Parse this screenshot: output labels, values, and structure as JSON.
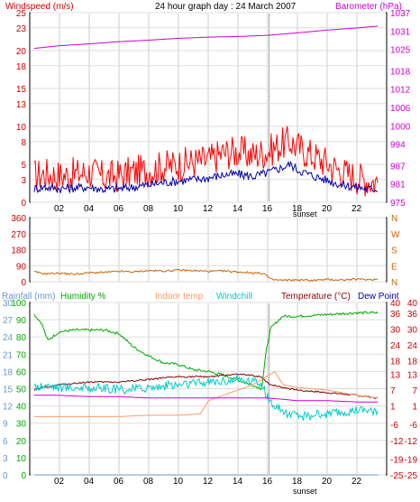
{
  "chart_data": {
    "title": "24 hour graph day : 24 March 2007",
    "x_ticks": [
      "02",
      "04",
      "06",
      "08",
      "10",
      "12",
      "14",
      "16",
      "18",
      "20",
      "22"
    ],
    "sunset_label": "sunset",
    "sunset_hour": 16.1,
    "panels": [
      {
        "id": "wind",
        "type": "line",
        "left_axis": {
          "label": "Windspeed (m/s)",
          "color": "#cc0000",
          "ticks": [
            0,
            3,
            5,
            8,
            10,
            13,
            15,
            18,
            20,
            23,
            25
          ],
          "range": [
            0,
            25
          ]
        },
        "right_axis": {
          "label": "Barometer (hPa)",
          "color": "#cc00cc",
          "ticks": [
            975,
            981,
            987,
            994,
            1000,
            1006,
            1012,
            1018,
            1025,
            1031,
            1037
          ],
          "range": [
            975,
            1037
          ]
        },
        "series": [
          {
            "key": "gust",
            "color": "#ff0000",
            "axis": "left",
            "x": [
              0.3,
              1,
              2,
              3,
              4,
              5,
              6,
              7,
              8,
              9,
              10,
              11,
              12,
              13,
              14,
              15,
              16,
              17,
              17.5,
              18,
              19,
              20,
              21,
              22,
              23,
              23.4
            ],
            "y": [
              3.5,
              3.8,
              3.5,
              3.7,
              4.0,
              3.3,
              3.5,
              4.0,
              4.2,
              4.7,
              5.0,
              5.3,
              5.5,
              6.5,
              6.7,
              6.2,
              6.7,
              7.7,
              8.0,
              7.3,
              6.2,
              5.2,
              4.0,
              3.3,
              2.8,
              2.8
            ]
          },
          {
            "key": "average",
            "color": "#0000aa",
            "axis": "left",
            "x": [
              0.3,
              1,
              2,
              3,
              4,
              5,
              6,
              7,
              8,
              9,
              10,
              11,
              12,
              13,
              14,
              15,
              16,
              17,
              17.5,
              18,
              19,
              20,
              21,
              22,
              23,
              23.4
            ],
            "y": [
              1.8,
              2.0,
              1.8,
              1.9,
              2.0,
              1.7,
              1.8,
              2.0,
              2.3,
              2.6,
              2.8,
              3.0,
              3.2,
              3.6,
              3.7,
              3.4,
              3.9,
              4.6,
              5.0,
              4.3,
              3.5,
              2.9,
              2.3,
              2.0,
              1.7,
              1.8
            ]
          },
          {
            "key": "barometer",
            "color": "#cc00cc",
            "axis": "right",
            "x": [
              0.3,
              2,
              4,
              6,
              8,
              10,
              12,
              14,
              16,
              18,
              20,
              22,
              23.4
            ],
            "y": [
              1025.3,
              1026.2,
              1026.8,
              1027.5,
              1028.0,
              1028.6,
              1029.0,
              1029.2,
              1029.6,
              1030.4,
              1031.3,
              1032.0,
              1032.6
            ]
          }
        ]
      },
      {
        "id": "direction",
        "type": "line",
        "left_axis": {
          "label": "",
          "color": "#cc0000",
          "ticks": [
            0,
            90,
            180,
            270,
            360
          ],
          "range": [
            0,
            360
          ]
        },
        "right_axis": {
          "label": "",
          "color": "#cc6600",
          "ticks": [
            "N",
            "E",
            "S",
            "W",
            "N"
          ]
        },
        "series": [
          {
            "key": "direction",
            "color": "#cc6600",
            "x": [
              0.3,
              1,
              2,
              3,
              4,
              5,
              6,
              7,
              8,
              9,
              10,
              11,
              12,
              13,
              14,
              15,
              15.8,
              16.2,
              17,
              18,
              19,
              20,
              21,
              22,
              23,
              23.4
            ],
            "y": [
              55,
              45,
              48,
              42,
              50,
              52,
              58,
              55,
              62,
              60,
              65,
              62,
              58,
              60,
              55,
              50,
              45,
              12,
              8,
              10,
              8,
              12,
              10,
              14,
              12,
              15
            ]
          }
        ]
      },
      {
        "id": "temp",
        "type": "line",
        "left_axis": {
          "label": "Rainfall (mm)",
          "color": "#6699cc",
          "ticks": [
            0,
            3,
            6,
            9,
            12,
            15,
            18,
            21,
            24,
            27,
            30
          ],
          "range": [
            0,
            30
          ]
        },
        "left_axis2": {
          "label": "Humidity %",
          "color": "#00aa00",
          "ticks": [
            0,
            10,
            20,
            30,
            40,
            50,
            60,
            70,
            80,
            90,
            100
          ],
          "range": [
            0,
            100
          ]
        },
        "right_axis": {
          "label": "Temperature (°C)",
          "color": "#cc0000",
          "ticks": [
            -25,
            -19,
            -12,
            -6,
            1,
            7,
            13,
            18,
            24,
            30,
            36,
            40
          ],
          "range": [
            -25,
            40
          ]
        },
        "right_axis2": {
          "label": "Dew Point",
          "color": "#cc0000",
          "ticks": [
            -25,
            -19,
            -12,
            -6,
            1,
            7,
            13,
            18,
            24,
            30,
            36,
            40
          ],
          "range": [
            -25,
            40
          ]
        },
        "legend": [
          {
            "label": "Rainfall (mm)",
            "color": "#6699cc"
          },
          {
            "label": "Humidity %",
            "color": "#00aa00"
          },
          {
            "label": "Indoor temp",
            "color": "#ff9966"
          },
          {
            "label": "Windchill",
            "color": "#00cccc"
          },
          {
            "label": "Temperature (°C)",
            "color": "#880000"
          },
          {
            "label": "Dew Point",
            "color": "#0000aa"
          }
        ],
        "series": [
          {
            "key": "humidity",
            "color": "#00aa00",
            "axis": "left2",
            "x": [
              0.3,
              0.8,
              1.2,
              2,
              3,
              4,
              5,
              6,
              7,
              8,
              9,
              10,
              11,
              12,
              13,
              14,
              15,
              15.6,
              15.9,
              16.2,
              17,
              18,
              20,
              22,
              23.4
            ],
            "y": [
              93,
              88,
              78,
              83,
              84,
              84,
              84,
              82,
              74,
              69,
              65,
              64,
              61,
              60,
              58,
              55,
              52,
              50,
              72,
              85,
              92,
              92,
              93,
              94,
              94
            ]
          },
          {
            "key": "temperature",
            "color": "#880000",
            "axis": "right",
            "x": [
              0.3,
              1,
              2,
              4,
              6,
              8,
              10,
              12,
              14,
              15.5,
              16.2,
              17,
              18,
              20,
              22,
              23.4
            ],
            "y": [
              7,
              8,
              9,
              10,
              10,
              11,
              12,
              12,
              13,
              12,
              9,
              8,
              7,
              6,
              5,
              4
            ]
          },
          {
            "key": "windchill",
            "color": "#00cccc",
            "axis": "right",
            "x": [
              0.3,
              1,
              2,
              4,
              6,
              8,
              10,
              12,
              14,
              15.5,
              16.2,
              17,
              18,
              20,
              22,
              23.4
            ],
            "y": [
              8,
              9,
              8,
              8,
              7,
              8,
              9,
              10,
              11,
              10,
              2,
              -1,
              -3,
              -2,
              -1,
              -1
            ]
          },
          {
            "key": "indoor",
            "color": "#ff9966",
            "axis": "right",
            "x": [
              0.3,
              2,
              4,
              6,
              8,
              10,
              11.5,
              12,
              13,
              14,
              15,
              16.5,
              17,
              18,
              20,
              22,
              23.4
            ],
            "y": [
              -3,
              -3,
              -3,
              -3,
              -2.5,
              -2.5,
              -2,
              3,
              5,
              7,
              9,
              14,
              9,
              8,
              7,
              5,
              4
            ]
          },
          {
            "key": "dewpoint",
            "color": "#cc00cc",
            "axis": "right",
            "x": [
              0.3,
              2,
              4,
              6,
              8,
              10,
              12,
              14,
              16,
              18,
              20,
              22,
              23.4
            ],
            "y": [
              5,
              5,
              4.5,
              4.5,
              4,
              4,
              4,
              4,
              4,
              3,
              3,
              2.5,
              2.5
            ]
          },
          {
            "key": "rainfall",
            "color": "#6699cc",
            "axis": "left",
            "x": [
              0.3,
              23.4
            ],
            "y": [
              0,
              0
            ]
          }
        ]
      }
    ]
  }
}
